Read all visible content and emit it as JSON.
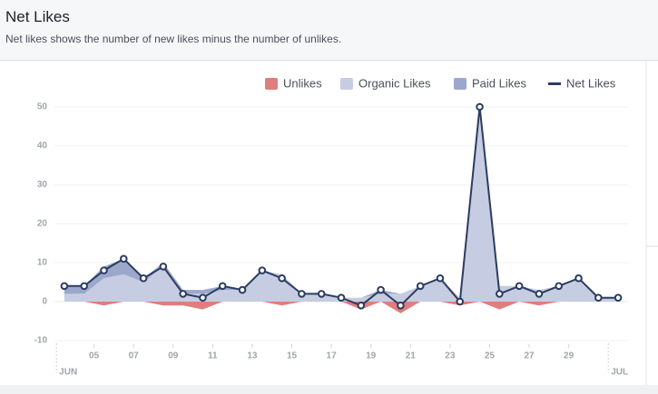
{
  "chart_data": {
    "type": "stacked-area-line",
    "title": "Net Likes",
    "subtitle": "Net likes shows the number of new likes minus the number of unlikes.",
    "x": [
      3.5,
      4.5,
      5.5,
      6.5,
      7.5,
      8.5,
      9.5,
      10.5,
      11.5,
      12.5,
      13.5,
      14.5,
      15.5,
      16.5,
      17.5,
      18.5,
      19.5,
      20.5,
      21.5,
      22.5,
      23.5,
      24.5,
      25.5,
      26.5,
      27.5,
      28.5,
      29.5,
      30.5,
      31.5
    ],
    "series": [
      {
        "name": "Unlikes",
        "color": "#e07d7d",
        "kind": "area-negative",
        "values": [
          0,
          0,
          -1,
          0,
          0,
          -1,
          -1,
          -2,
          0,
          0,
          0,
          -1,
          0,
          0,
          0,
          -2,
          0,
          -3,
          0,
          0,
          -1,
          0,
          -2,
          0,
          -1,
          0,
          0,
          0,
          0
        ]
      },
      {
        "name": "Organic Likes",
        "color": "#c6cde2",
        "kind": "area",
        "values": [
          2,
          2,
          6,
          7,
          5,
          9,
          2,
          2,
          3,
          3,
          8,
          7,
          2,
          2,
          1,
          1,
          2,
          2,
          4,
          6,
          1,
          50,
          4,
          4,
          3,
          4,
          6,
          1,
          1
        ]
      },
      {
        "name": "Paid Likes",
        "color": "#9ba8cb",
        "kind": "area",
        "values": [
          2,
          2,
          3,
          4,
          1,
          1,
          1,
          1,
          1,
          0,
          0,
          0,
          0,
          0,
          0,
          0,
          1,
          0,
          0,
          0,
          0,
          0,
          0,
          0,
          0,
          0,
          0,
          0,
          0
        ]
      },
      {
        "name": "Net Likes",
        "color": "#2c3c60",
        "kind": "line",
        "values": [
          4,
          4,
          8,
          11,
          6,
          9,
          2,
          1,
          4,
          3,
          8,
          6,
          2,
          2,
          1,
          -1,
          3,
          -1,
          4,
          6,
          0,
          50,
          2,
          4,
          2,
          4,
          6,
          1,
          1
        ]
      }
    ],
    "xlim": [
      3,
      32
    ],
    "xticks": [
      {
        "value": 5,
        "label": "05"
      },
      {
        "value": 7,
        "label": "07"
      },
      {
        "value": 9,
        "label": "09"
      },
      {
        "value": 11,
        "label": "11"
      },
      {
        "value": 13,
        "label": "13"
      },
      {
        "value": 15,
        "label": "15"
      },
      {
        "value": 17,
        "label": "17"
      },
      {
        "value": 19,
        "label": "19"
      },
      {
        "value": 21,
        "label": "21"
      },
      {
        "value": 23,
        "label": "23"
      },
      {
        "value": 25,
        "label": "25"
      },
      {
        "value": 27,
        "label": "27"
      },
      {
        "value": 29,
        "label": "29"
      }
    ],
    "month_ticks": [
      {
        "value": 3.1,
        "label": "JUN"
      },
      {
        "value": 31,
        "label": "JUL"
      }
    ],
    "ylim": [
      -10,
      50
    ],
    "yticks": [
      -10,
      0,
      10,
      20,
      30,
      40,
      50
    ],
    "grid": true
  }
}
